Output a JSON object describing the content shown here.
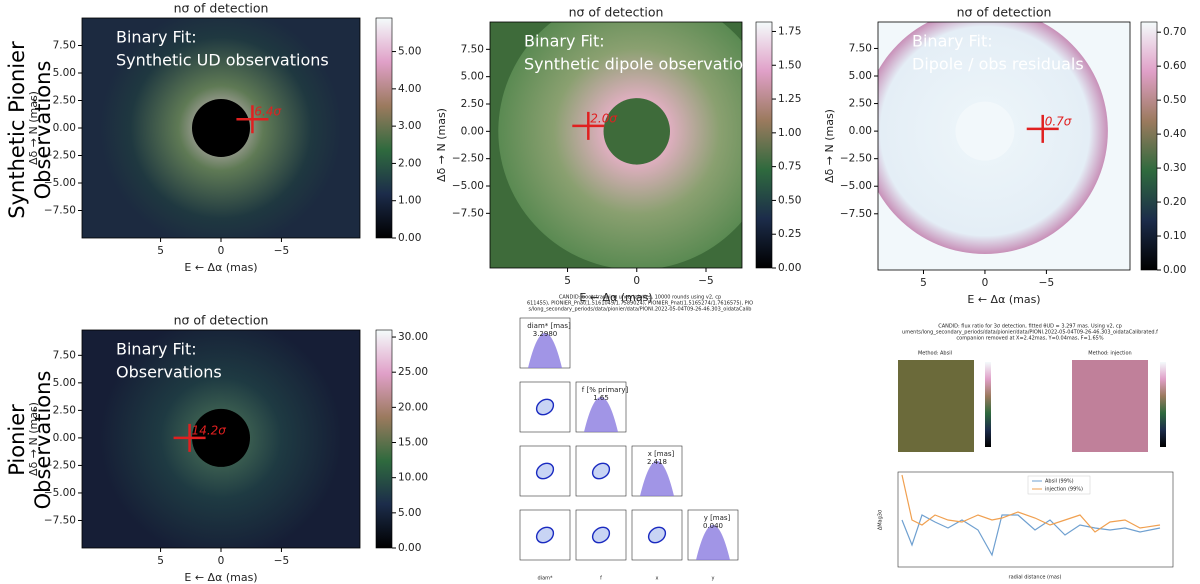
{
  "row_labels": [
    {
      "lines": [
        "Synthetic Pionier",
        "Observations"
      ]
    },
    {
      "lines": [
        "Pionier",
        "Observations"
      ]
    }
  ],
  "panels": [
    {
      "title": "nσ of detection",
      "overlay": [
        "Binary Fit:",
        "Synthetic UD observations"
      ],
      "marker": {
        "label": "6.4σ",
        "x": -2.6,
        "y": 0.8
      },
      "xlabel": "E ← Δα (mas)",
      "ylabel": "Δδ → N (mas)",
      "xlim": [
        11.5,
        -11.5
      ],
      "ylim": [
        -10,
        10
      ],
      "xticks": [
        {
          "value": 5,
          "label": "5"
        },
        {
          "value": 0,
          "label": "0"
        },
        {
          "value": -5,
          "label": "−5"
        }
      ],
      "yticks": [
        {
          "value": 7.5,
          "label": "7.50"
        },
        {
          "value": 5,
          "label": "5.00"
        },
        {
          "value": 2.5,
          "label": "2.50"
        },
        {
          "value": 0,
          "label": "0.00"
        },
        {
          "value": -2.5,
          "label": "−2.50"
        },
        {
          "value": -5,
          "label": "−5.00"
        },
        {
          "value": -7.5,
          "label": "−7.50"
        }
      ],
      "clim": [
        0,
        5.9
      ],
      "cticks": [
        {
          "value": 0,
          "label": "0.00"
        },
        {
          "value": 1,
          "label": "1.00"
        },
        {
          "value": 2,
          "label": "2.00"
        },
        {
          "value": 3,
          "label": "3.00"
        },
        {
          "value": 4,
          "label": "4.00"
        },
        {
          "value": 5,
          "label": "5.00"
        }
      ]
    },
    {
      "title": "nσ of detection",
      "overlay": [
        "Binary Fit:",
        "Synthetic dipole observations"
      ],
      "marker": {
        "label": "2.0σ",
        "x": 3.5,
        "y": 0.5
      },
      "xlabel": "E ← Δα (mas)",
      "ylabel": "Δδ → N (mas)",
      "xlim": [
        10.6,
        -7.6
      ],
      "ylim": [
        -12.5,
        10.0
      ],
      "xticks": [
        {
          "value": 5,
          "label": "5"
        },
        {
          "value": 0,
          "label": "0"
        },
        {
          "value": -5,
          "label": "−5"
        }
      ],
      "yticks": [
        {
          "value": 7.5,
          "label": "7.50"
        },
        {
          "value": 5,
          "label": "5.00"
        },
        {
          "value": 2.5,
          "label": "2.50"
        },
        {
          "value": 0,
          "label": "0.00"
        },
        {
          "value": -2.5,
          "label": "−2.50"
        },
        {
          "value": -5,
          "label": "−5.00"
        },
        {
          "value": -7.5,
          "label": "−7.50"
        }
      ],
      "clim": [
        0,
        1.82
      ],
      "cticks": [
        {
          "value": 0,
          "label": "0.00"
        },
        {
          "value": 0.25,
          "label": "0.25"
        },
        {
          "value": 0.5,
          "label": "0.50"
        },
        {
          "value": 0.75,
          "label": "0.75"
        },
        {
          "value": 1,
          "label": "1.00"
        },
        {
          "value": 1.25,
          "label": "1.25"
        },
        {
          "value": 1.5,
          "label": "1.50"
        },
        {
          "value": 1.75,
          "label": "1.75"
        }
      ]
    },
    {
      "title": "nσ of detection",
      "overlay": [
        "Binary Fit:",
        "Dipole / obs  residuals"
      ],
      "marker": {
        "label": "0.7σ",
        "x": -4.7,
        "y": 0.2
      },
      "xlabel": "E ← Δα (mas)",
      "ylabel": "Δδ → N (mas)",
      "xlim": [
        8.7,
        -11.8
      ],
      "ylim": [
        -12.6,
        9.9
      ],
      "xticks": [
        {
          "value": 5,
          "label": "5"
        },
        {
          "value": 0,
          "label": "0"
        },
        {
          "value": -5,
          "label": "−5"
        }
      ],
      "yticks": [
        {
          "value": 7.5,
          "label": "7.50"
        },
        {
          "value": 5,
          "label": "5.00"
        },
        {
          "value": 2.5,
          "label": "2.50"
        },
        {
          "value": 0,
          "label": "0.00"
        },
        {
          "value": -2.5,
          "label": "−2.50"
        },
        {
          "value": -5,
          "label": "−5.00"
        },
        {
          "value": -7.5,
          "label": "−7.50"
        }
      ],
      "clim": [
        0,
        0.73
      ],
      "cticks": [
        {
          "value": 0,
          "label": "0.00"
        },
        {
          "value": 0.1,
          "label": "0.10"
        },
        {
          "value": 0.2,
          "label": "0.20"
        },
        {
          "value": 0.3,
          "label": "0.30"
        },
        {
          "value": 0.4,
          "label": "0.40"
        },
        {
          "value": 0.5,
          "label": "0.50"
        },
        {
          "value": 0.6,
          "label": "0.60"
        },
        {
          "value": 0.7,
          "label": "0.70"
        }
      ]
    },
    {
      "title": "nσ of detection",
      "overlay": [
        "Binary Fit:",
        "Observations"
      ],
      "marker": {
        "label": "14.2σ",
        "x": 2.6,
        "y": 0.0
      },
      "xlabel": "E ← Δα (mas)",
      "ylabel": "Δδ → N (mas)",
      "xlim": [
        11.5,
        -11.5
      ],
      "ylim": [
        -10,
        9.8
      ],
      "xticks": [
        {
          "value": 5,
          "label": "5"
        },
        {
          "value": 0,
          "label": "0"
        },
        {
          "value": -5,
          "label": "−5"
        }
      ],
      "yticks": [
        {
          "value": 7.5,
          "label": "7.50"
        },
        {
          "value": 5,
          "label": "5.00"
        },
        {
          "value": 2.5,
          "label": "2.50"
        },
        {
          "value": 0,
          "label": "0.00"
        },
        {
          "value": -2.5,
          "label": "−2.50"
        },
        {
          "value": -5,
          "label": "−5.00"
        },
        {
          "value": -7.5,
          "label": "−7.50"
        }
      ],
      "clim": [
        0,
        31
      ],
      "cticks": [
        {
          "value": 0,
          "label": "0.00"
        },
        {
          "value": 5,
          "label": "5.00"
        },
        {
          "value": 10,
          "label": "10.00"
        },
        {
          "value": 15,
          "label": "15.00"
        },
        {
          "value": 20,
          "label": "20.00"
        },
        {
          "value": 25,
          "label": "25.00"
        },
        {
          "value": 30,
          "label": "30.00"
        }
      ]
    }
  ],
  "corner": {
    "title": [
      "CANDID: bootstrapping uncertainties, 10000 rounds using v2, cp",
      "611455), PIONIER_Pnat(1.5161049/1.7589024), PIONIER_Pnat(1.5165274/1.7616575), PIO",
      "s/long_secondary_periods/data/pionier/data/PIONI.2022-05-04T09-26-46.303_oidataCalib"
    ],
    "params": [
      "diam* [mas]",
      "f [% primary]",
      "x [mas]",
      "y [mas]"
    ],
    "estimates": [
      "3.2980",
      "1.65",
      "2.418",
      "0.040"
    ],
    "axis_names": [
      "diam*",
      "f",
      "x",
      "y"
    ]
  },
  "flux": {
    "title": [
      "CANDID: flux ratio for 3σ detection, fitted θUD = 3.297 mas. Using v2, cp",
      "uments/long_secondary_periods/data/pionier/data/PIONI.2022-05-04T09-26-46.303_oidataCalibrated.f",
      "companion removed at X=2.42mas, Y=0.04mas, F=1.65%"
    ],
    "methods": [
      "Method: Absil",
      "Method: injection"
    ],
    "legend": [
      "Absil (99%)",
      "injection (99%)"
    ],
    "xlabel": "radial distance (mas)",
    "ylabel": "ΔMag3σ"
  }
}
